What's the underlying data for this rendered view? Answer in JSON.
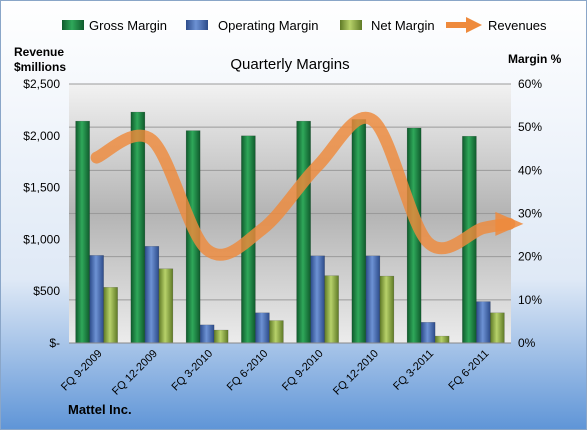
{
  "chart_data": {
    "type": "bar",
    "title": "Quarterly Margins",
    "company": "Mattel Inc.",
    "left_axis_label": [
      "Revenue",
      "$millions"
    ],
    "right_axis_label": "Margin %",
    "left_ylim": [
      0,
      2500
    ],
    "right_ylim": [
      0,
      60
    ],
    "left_ticks": [
      "$-",
      "$500",
      "$1,000",
      "$1,500",
      "$2,000",
      "$2,500"
    ],
    "right_ticks": [
      "0%",
      "10%",
      "20%",
      "30%",
      "40%",
      "50%",
      "60%"
    ],
    "categories": [
      "FQ 9-2009",
      "FQ 12-2009",
      "FQ 3-2010",
      "FQ 6-2010",
      "FQ 9-2010",
      "FQ 12-2010",
      "FQ 3-2011",
      "FQ 6-2011"
    ],
    "legend_position": "top",
    "grid": true,
    "series": [
      {
        "name": "Gross Margin",
        "type": "bar",
        "axis": "right",
        "color": "#1e8a46",
        "values": [
          51.4,
          53.5,
          49.2,
          48.0,
          51.4,
          51.8,
          49.8,
          47.9
        ]
      },
      {
        "name": "Operating Margin",
        "type": "bar",
        "axis": "right",
        "color": "#4a6fb5",
        "values": [
          20.3,
          22.4,
          4.2,
          7.0,
          20.2,
          20.2,
          4.8,
          9.6
        ]
      },
      {
        "name": "Net Margin",
        "type": "bar",
        "axis": "right",
        "color": "#98b64a",
        "values": [
          12.9,
          17.2,
          3.0,
          5.2,
          15.6,
          15.5,
          1.6,
          7.0
        ]
      },
      {
        "name": "Revenues",
        "type": "line",
        "axis": "left",
        "color": "#ee8a3c",
        "values": [
          1790,
          1960,
          900,
          1100,
          1710,
          2150,
          970,
          1110
        ]
      }
    ],
    "revenue_arrow_end": 1150
  }
}
